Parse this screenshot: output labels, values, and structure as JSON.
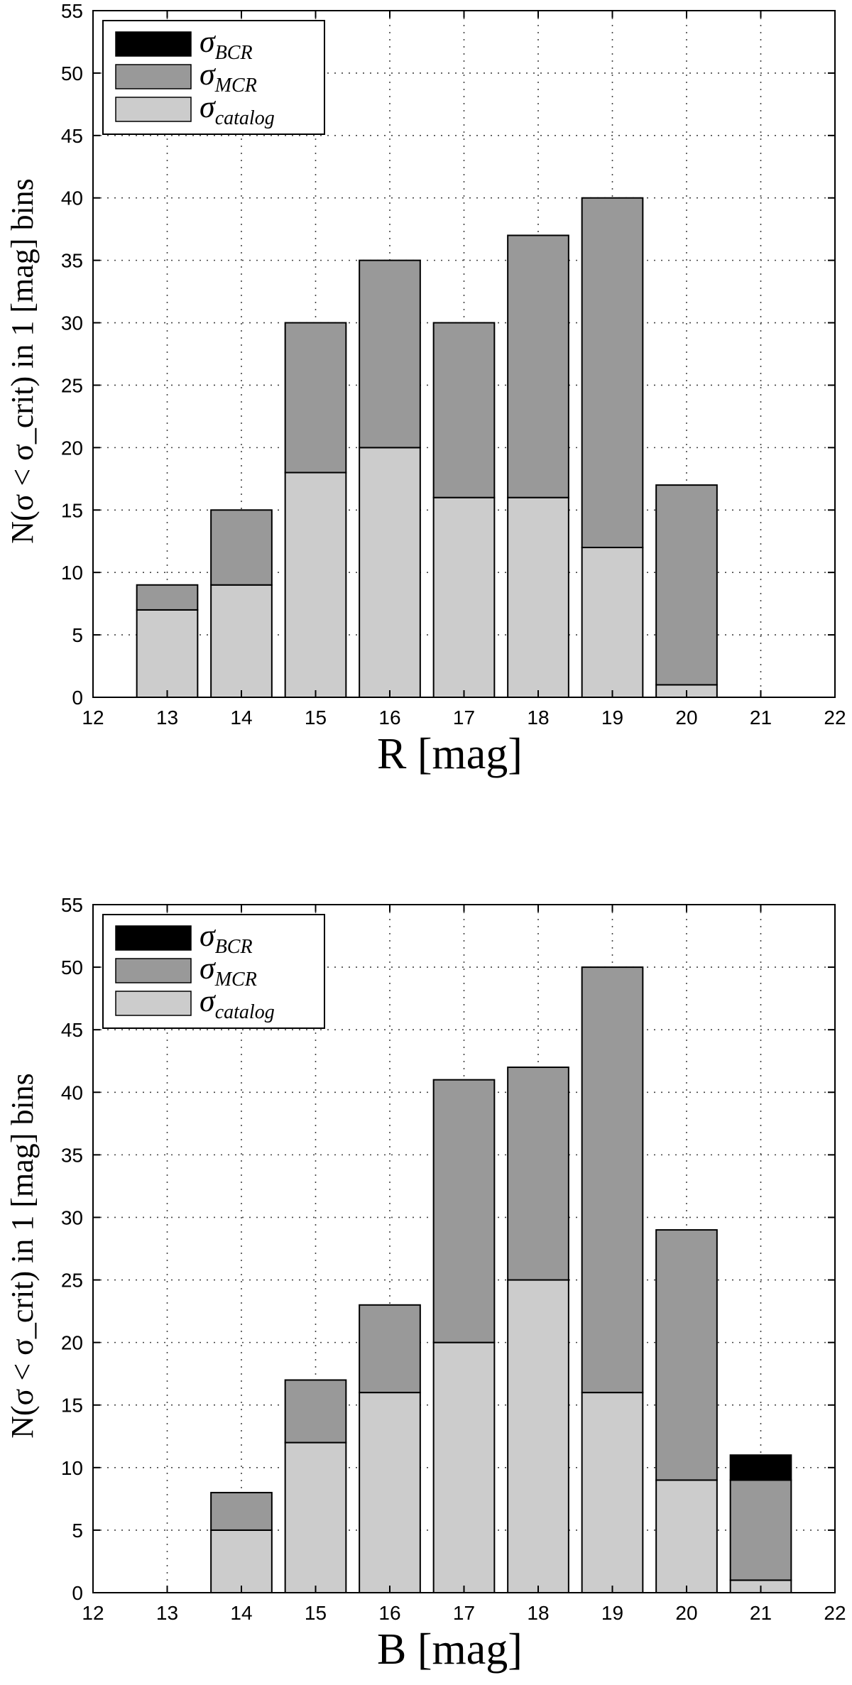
{
  "colors": {
    "bcr": "#000000",
    "mcr": "#999999",
    "catalog": "#cccccc",
    "grid": "#444444",
    "axis": "#000000"
  },
  "legend": [
    {
      "symbol": "σ",
      "sub": "BCR",
      "color_key": "bcr"
    },
    {
      "symbol": "σ",
      "sub": "MCR",
      "color_key": "mcr"
    },
    {
      "symbol": "σ",
      "sub": "catalog",
      "color_key": "catalog"
    }
  ],
  "chart_data": [
    {
      "type": "bar",
      "stacked": true,
      "title": "",
      "xlabel": "R [mag]",
      "ylabel": "N(σ < σ_crit) in 1 [mag] bins",
      "xlim": [
        12,
        22
      ],
      "ylim": [
        0,
        55
      ],
      "xticks": [
        12,
        13,
        14,
        15,
        16,
        17,
        18,
        19,
        20,
        21,
        22
      ],
      "yticks": [
        0,
        5,
        10,
        15,
        20,
        25,
        30,
        35,
        40,
        45,
        50,
        55
      ],
      "grid": true,
      "legend_position": "top-left",
      "x": [
        13,
        14,
        15,
        16,
        17,
        18,
        19,
        20,
        21
      ],
      "series": [
        {
          "name": "σ_catalog",
          "values": [
            7,
            9,
            18,
            20,
            16,
            16,
            12,
            1,
            0
          ]
        },
        {
          "name": "σ_MCR",
          "values": [
            2,
            6,
            12,
            15,
            14,
            21,
            28,
            16,
            0
          ]
        },
        {
          "name": "σ_BCR",
          "values": [
            0,
            0,
            0,
            0,
            0,
            0,
            0,
            0,
            0
          ]
        }
      ]
    },
    {
      "type": "bar",
      "stacked": true,
      "title": "",
      "xlabel": "B [mag]",
      "ylabel": "N(σ < σ_crit) in 1 [mag] bins",
      "xlim": [
        12,
        22
      ],
      "ylim": [
        0,
        55
      ],
      "xticks": [
        12,
        13,
        14,
        15,
        16,
        17,
        18,
        19,
        20,
        21,
        22
      ],
      "yticks": [
        0,
        5,
        10,
        15,
        20,
        25,
        30,
        35,
        40,
        45,
        50,
        55
      ],
      "grid": true,
      "legend_position": "top-left",
      "x": [
        13,
        14,
        15,
        16,
        17,
        18,
        19,
        20,
        21
      ],
      "series": [
        {
          "name": "σ_catalog",
          "values": [
            0,
            5,
            12,
            16,
            20,
            25,
            16,
            9,
            1
          ]
        },
        {
          "name": "σ_MCR",
          "values": [
            0,
            3,
            5,
            7,
            21,
            17,
            34,
            20,
            8
          ]
        },
        {
          "name": "σ_BCR",
          "values": [
            0,
            0,
            0,
            0,
            0,
            0,
            0,
            0,
            2
          ]
        }
      ]
    }
  ]
}
